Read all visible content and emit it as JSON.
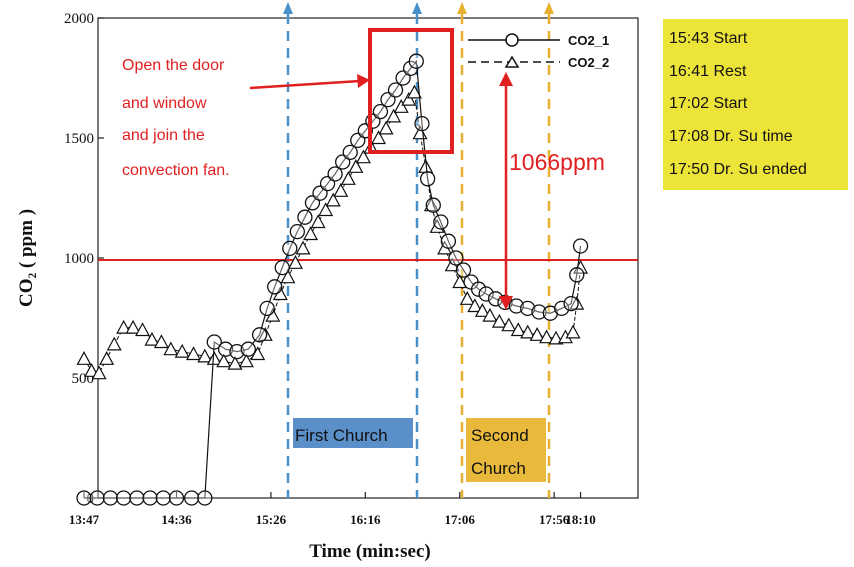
{
  "chart_data": {
    "type": "line",
    "title": "",
    "xlabel": "Time (min:sec)",
    "ylabel": "CO₂ ( ppm )",
    "ylim": [
      0,
      2000
    ],
    "xlim_minutes": [
      827,
      1095
    ],
    "xticks": [
      {
        "label": "13:47",
        "t": 827
      },
      {
        "label": "14:36",
        "t": 876
      },
      {
        "label": "15:26",
        "t": 926
      },
      {
        "label": "16:16",
        "t": 976
      },
      {
        "label": "17:06",
        "t": 1026
      },
      {
        "label": "17:56",
        "t": 1076
      },
      {
        "label": "18:10",
        "t": 1090
      }
    ],
    "yticks": [
      0,
      500,
      1000,
      1500,
      2000
    ],
    "series": [
      {
        "name": "CO2_1",
        "marker": "circle",
        "points": [
          [
            827,
            0
          ],
          [
            834,
            0
          ],
          [
            841,
            0
          ],
          [
            848,
            0
          ],
          [
            855,
            0
          ],
          [
            862,
            0
          ],
          [
            869,
            0
          ],
          [
            876,
            0
          ],
          [
            884,
            0
          ],
          [
            891,
            0
          ],
          [
            896,
            650
          ],
          [
            902,
            620
          ],
          [
            908,
            610
          ],
          [
            914,
            620
          ],
          [
            920,
            680
          ],
          [
            924,
            790
          ],
          [
            928,
            880
          ],
          [
            932,
            960
          ],
          [
            936,
            1040
          ],
          [
            940,
            1110
          ],
          [
            944,
            1170
          ],
          [
            948,
            1230
          ],
          [
            952,
            1270
          ],
          [
            956,
            1310
          ],
          [
            960,
            1350
          ],
          [
            964,
            1400
          ],
          [
            968,
            1440
          ],
          [
            972,
            1490
          ],
          [
            976,
            1530
          ],
          [
            980,
            1570
          ],
          [
            984,
            1610
          ],
          [
            988,
            1660
          ],
          [
            992,
            1700
          ],
          [
            996,
            1750
          ],
          [
            1000,
            1790
          ],
          [
            1003,
            1820
          ],
          [
            1006,
            1560
          ],
          [
            1009,
            1330
          ],
          [
            1012,
            1220
          ],
          [
            1016,
            1150
          ],
          [
            1020,
            1070
          ],
          [
            1024,
            1000
          ],
          [
            1028,
            950
          ],
          [
            1032,
            900
          ],
          [
            1036,
            870
          ],
          [
            1040,
            850
          ],
          [
            1045,
            830
          ],
          [
            1050,
            815
          ],
          [
            1056,
            800
          ],
          [
            1062,
            790
          ],
          [
            1068,
            775
          ],
          [
            1074,
            770
          ],
          [
            1080,
            790
          ],
          [
            1085,
            810
          ],
          [
            1088,
            930
          ],
          [
            1090,
            1050
          ]
        ]
      },
      {
        "name": "CO2_2",
        "marker": "triangle",
        "points": [
          [
            827,
            580
          ],
          [
            831,
            530
          ],
          [
            835,
            520
          ],
          [
            839,
            580
          ],
          [
            843,
            640
          ],
          [
            848,
            710
          ],
          [
            853,
            710
          ],
          [
            858,
            700
          ],
          [
            863,
            660
          ],
          [
            868,
            650
          ],
          [
            873,
            620
          ],
          [
            879,
            610
          ],
          [
            885,
            600
          ],
          [
            891,
            590
          ],
          [
            896,
            580
          ],
          [
            901,
            570
          ],
          [
            907,
            560
          ],
          [
            913,
            570
          ],
          [
            919,
            600
          ],
          [
            923,
            680
          ],
          [
            927,
            760
          ],
          [
            931,
            850
          ],
          [
            935,
            920
          ],
          [
            939,
            980
          ],
          [
            943,
            1040
          ],
          [
            947,
            1100
          ],
          [
            951,
            1150
          ],
          [
            955,
            1200
          ],
          [
            959,
            1240
          ],
          [
            963,
            1280
          ],
          [
            967,
            1330
          ],
          [
            971,
            1380
          ],
          [
            975,
            1420
          ],
          [
            979,
            1460
          ],
          [
            983,
            1500
          ],
          [
            987,
            1540
          ],
          [
            991,
            1590
          ],
          [
            995,
            1630
          ],
          [
            999,
            1660
          ],
          [
            1002,
            1690
          ],
          [
            1005,
            1520
          ],
          [
            1008,
            1380
          ],
          [
            1011,
            1220
          ],
          [
            1014,
            1130
          ],
          [
            1018,
            1040
          ],
          [
            1022,
            970
          ],
          [
            1026,
            900
          ],
          [
            1030,
            830
          ],
          [
            1034,
            800
          ],
          [
            1038,
            780
          ],
          [
            1042,
            760
          ],
          [
            1047,
            735
          ],
          [
            1052,
            720
          ],
          [
            1057,
            700
          ],
          [
            1062,
            690
          ],
          [
            1067,
            680
          ],
          [
            1072,
            670
          ],
          [
            1077,
            665
          ],
          [
            1082,
            670
          ],
          [
            1086,
            690
          ],
          [
            1088,
            810
          ],
          [
            1090,
            960
          ]
        ]
      }
    ],
    "reference_line": {
      "y": 1000,
      "color": "#e02020"
    },
    "legend_placement": "top-right",
    "grid": false
  },
  "annotations": {
    "note_lines": [
      "Open the door",
      "and window",
      "and join the",
      "convection fan."
    ],
    "diff_label": "1066ppm",
    "first_church": "First Church",
    "second_church_lines": [
      "Second",
      "Church"
    ]
  },
  "events": [
    "15:43 Start",
    "16:41 Rest",
    "17:02 Start",
    "17:08 Dr. Su time",
    "17:50 Dr. Su ended"
  ],
  "colors": {
    "accent_red": "#e02020",
    "blue_dash": "#4a90c8",
    "orange_dash": "#e8b030",
    "first_church_bg": "#5b8fc9",
    "second_church_bg": "#e9b93c",
    "events_bg": "#ede43a"
  }
}
